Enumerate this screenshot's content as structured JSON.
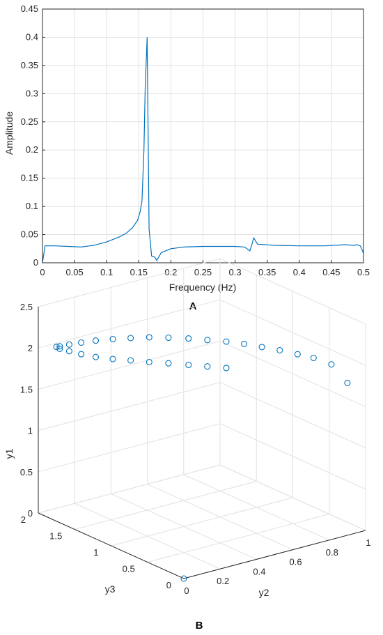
{
  "panels": {
    "a_label": "A",
    "b_label": "B"
  },
  "colors": {
    "series": "#0072BD",
    "grid": "#e1e1e1",
    "axis": "#262626"
  },
  "chart_data": [
    {
      "type": "line",
      "xlabel": "Frequency (Hz)",
      "ylabel": "Amplitude",
      "xlim": [
        0,
        0.5
      ],
      "ylim": [
        0,
        0.45
      ],
      "xticks": [
        "0",
        "0.05",
        "0.1",
        "0.15",
        "0.2",
        "0.25",
        "0.3",
        "0.35",
        "0.4",
        "0.45",
        "0.5"
      ],
      "yticks": [
        "0",
        "0.05",
        "0.1",
        "0.15",
        "0.2",
        "0.25",
        "0.3",
        "0.35",
        "0.4",
        "0.45"
      ],
      "grid": true,
      "x": [
        0,
        0.004,
        0.02,
        0.04,
        0.06,
        0.08,
        0.1,
        0.12,
        0.13,
        0.14,
        0.148,
        0.152,
        0.155,
        0.158,
        0.16,
        0.163,
        0.166,
        0.17,
        0.175,
        0.178,
        0.185,
        0.2,
        0.22,
        0.25,
        0.28,
        0.3,
        0.315,
        0.323,
        0.326,
        0.329,
        0.335,
        0.36,
        0.4,
        0.44,
        0.47,
        0.485,
        0.49,
        0.495,
        0.5
      ],
      "y": [
        0,
        0.03,
        0.03,
        0.029,
        0.028,
        0.031,
        0.037,
        0.046,
        0.052,
        0.062,
        0.075,
        0.09,
        0.11,
        0.2,
        0.31,
        0.4,
        0.06,
        0.012,
        0.01,
        0.004,
        0.018,
        0.025,
        0.028,
        0.029,
        0.029,
        0.029,
        0.028,
        0.021,
        0.032,
        0.044,
        0.033,
        0.031,
        0.03,
        0.03,
        0.032,
        0.031,
        0.032,
        0.03,
        0.017
      ]
    },
    {
      "type": "scatter",
      "projection": "3d",
      "xlabel": "y2",
      "ylabel": "y3",
      "zlabel": "y1",
      "xlim": [
        0,
        1
      ],
      "ylim": [
        0,
        2
      ],
      "zlim": [
        0,
        2.5
      ],
      "xticks": [
        "0",
        "0.2",
        "0.4",
        "0.6",
        "0.8",
        "1"
      ],
      "yticks": [
        "0",
        "0.5",
        "1",
        "1.5",
        "2"
      ],
      "zticks": [
        "0",
        "0.5",
        "1",
        "1.5",
        "2",
        "2.5"
      ],
      "grid": true,
      "marker": "open-circle",
      "y2": [
        0.0,
        0.98,
        0.94,
        0.89,
        0.85,
        0.8,
        0.75,
        0.7,
        0.65,
        0.59,
        0.53,
        0.46,
        0.39,
        0.32,
        0.25,
        0.18,
        0.12,
        0.07,
        0.03,
        0.02,
        0.03,
        0.07,
        0.12,
        0.18,
        0.25,
        0.32,
        0.39,
        0.46,
        0.53,
        0.59,
        0.65
      ],
      "y3": [
        0.0,
        0.2,
        0.32,
        0.44,
        0.56,
        0.68,
        0.8,
        0.92,
        1.04,
        1.15,
        1.26,
        1.36,
        1.45,
        1.53,
        1.6,
        1.66,
        1.71,
        1.75,
        1.78,
        1.8,
        1.78,
        1.75,
        1.71,
        1.66,
        1.6,
        1.53,
        1.45,
        1.36,
        1.26,
        1.15,
        1.04
      ],
      "y1": [
        0.0,
        1.72,
        1.92,
        1.98,
        2.0,
        2.03,
        2.05,
        2.07,
        2.08,
        2.09,
        2.1,
        2.11,
        2.12,
        2.12,
        2.12,
        2.12,
        2.11,
        2.1,
        2.09,
        2.08,
        2.06,
        2.02,
        1.97,
        1.92,
        1.88,
        1.85,
        1.82,
        1.8,
        1.78,
        1.77,
        1.76
      ]
    }
  ]
}
